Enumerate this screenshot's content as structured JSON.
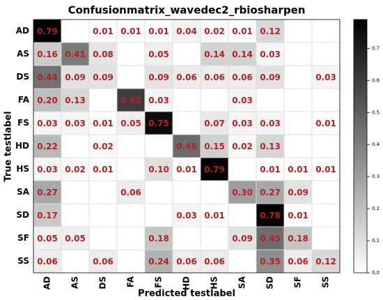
{
  "chart_data": {
    "type": "heatmap",
    "title": "Confusionmatrix_wavedec2_rbiosharpen",
    "x_label": "Predicted testlabel",
    "y_label": "True testlabel",
    "x_categories": [
      "AD",
      "AS",
      "DS",
      "FA",
      "FS",
      "HD",
      "HS",
      "SA",
      "SD",
      "SF",
      "SS"
    ],
    "y_categories": [
      "AD",
      "AS",
      "DS",
      "FA",
      "FS",
      "HD",
      "HS",
      "SA",
      "SD",
      "SF",
      "SS"
    ],
    "values": [
      [
        0.79,
        null,
        0.01,
        0.01,
        0.01,
        0.04,
        0.02,
        0.01,
        0.12,
        null,
        null
      ],
      [
        0.16,
        0.41,
        0.08,
        null,
        0.05,
        null,
        0.14,
        0.14,
        0.03,
        null,
        null
      ],
      [
        0.44,
        0.09,
        0.09,
        null,
        0.09,
        0.06,
        0.06,
        0.06,
        0.09,
        null,
        0.03
      ],
      [
        0.2,
        0.13,
        null,
        0.6,
        0.03,
        null,
        null,
        0.03,
        null,
        null,
        null
      ],
      [
        0.03,
        0.03,
        0.01,
        0.05,
        0.75,
        null,
        0.07,
        0.03,
        0.03,
        null,
        0.01
      ],
      [
        0.22,
        null,
        0.02,
        null,
        null,
        0.46,
        0.15,
        0.02,
        0.13,
        null,
        null
      ],
      [
        0.03,
        0.02,
        0.01,
        null,
        0.1,
        0.01,
        0.79,
        null,
        0.01,
        0.01,
        0.01
      ],
      [
        0.27,
        null,
        null,
        0.06,
        null,
        null,
        null,
        0.3,
        0.27,
        0.09,
        null
      ],
      [
        0.17,
        null,
        null,
        null,
        null,
        0.03,
        0.01,
        null,
        0.78,
        0.01,
        null
      ],
      [
        0.05,
        0.05,
        null,
        null,
        0.18,
        null,
        null,
        0.09,
        0.45,
        0.18,
        null
      ],
      [
        0.06,
        null,
        0.06,
        null,
        0.24,
        0.06,
        0.06,
        null,
        0.35,
        0.06,
        0.12
      ]
    ],
    "value_labels": [
      [
        "0.79",
        null,
        "0.01",
        "0.01",
        "0.01",
        "0.04",
        "0.02",
        "0.01",
        "0.12",
        null,
        null
      ],
      [
        "0.16",
        "0.41",
        "0.08",
        null,
        "0.05",
        null,
        "0.14",
        "0.14",
        "0.03",
        null,
        null
      ],
      [
        "0.44",
        "0.09",
        "0.09",
        null,
        "0.09",
        "0.06",
        "0.06",
        "0.06",
        "0.09",
        null,
        "0.03"
      ],
      [
        "0.20",
        "0.13",
        null,
        "0.60",
        "0.03",
        null,
        null,
        "0.03",
        null,
        null,
        null
      ],
      [
        "0.03",
        "0.03",
        "0.01",
        "0.05",
        "0.75",
        null,
        "0.07",
        "0.03",
        "0.03",
        null,
        "0.01"
      ],
      [
        "0.22",
        null,
        "0.02",
        null,
        null,
        "0.46",
        "0.15",
        "0.02",
        "0.13",
        null,
        null
      ],
      [
        "0.03",
        "0.02",
        "0.01",
        null,
        "0.10",
        "0.01",
        "0.79",
        null,
        "0.01",
        "0.01",
        "0.01"
      ],
      [
        "0.27",
        null,
        null,
        "0.06",
        null,
        null,
        null,
        "0.30",
        "0.27",
        "0.09",
        null
      ],
      [
        "0.17",
        null,
        null,
        null,
        null,
        "0.03",
        "0.01",
        null,
        "0.78",
        "0.01",
        null
      ],
      [
        "0.05",
        "0.05",
        null,
        null,
        "0.18",
        null,
        null,
        "0.09",
        "0.45",
        "0.18",
        null
      ],
      [
        "0.06",
        null,
        "0.06",
        null,
        "0.24",
        "0.06",
        "0.06",
        null,
        "0.35",
        "0.06",
        "0.12"
      ]
    ],
    "colorbar_lim": [
      0,
      0.79
    ],
    "colorbar_ticks": [
      {
        "value": 0,
        "label": "0.0"
      },
      0.1,
      0.2,
      0.3,
      0.4,
      0.5,
      0.6,
      0.7
    ],
    "text_color": "#b22222"
  }
}
